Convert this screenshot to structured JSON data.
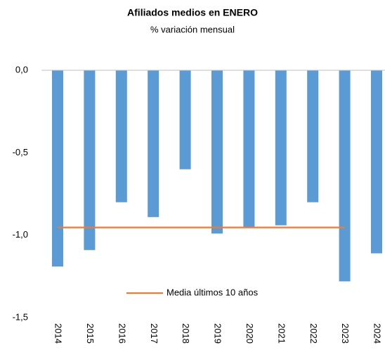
{
  "chart_data": {
    "type": "bar",
    "title": "Afiliados medios en ENERO",
    "subtitle": "% variación mensual",
    "categories": [
      "2014",
      "2015",
      "2016",
      "2017",
      "2018",
      "2019",
      "2020",
      "2021",
      "2022",
      "2023",
      "2024"
    ],
    "series": [
      {
        "type": "bar",
        "color": "#5b9bd5",
        "values": [
          -1.19,
          -1.09,
          -0.8,
          -0.89,
          -0.6,
          -0.99,
          -0.95,
          -0.94,
          -0.8,
          -1.28,
          -1.11
        ]
      },
      {
        "type": "line",
        "name": "Media últimos 10 años",
        "color": "#ed7d31",
        "values": [
          -0.953,
          -0.953,
          -0.953,
          -0.953,
          -0.953,
          -0.953,
          -0.953,
          -0.953,
          -0.953,
          -0.953,
          null
        ]
      }
    ],
    "ylim": [
      -1.5,
      0
    ],
    "yticks": [
      {
        "value": 0,
        "label": "0,0"
      },
      {
        "value": -0.5,
        "label": "-0,5"
      },
      {
        "value": -1,
        "label": "-1,0"
      },
      {
        "value": -1.5,
        "label": "-1,5"
      }
    ],
    "grid": false,
    "legend": "bottom"
  }
}
